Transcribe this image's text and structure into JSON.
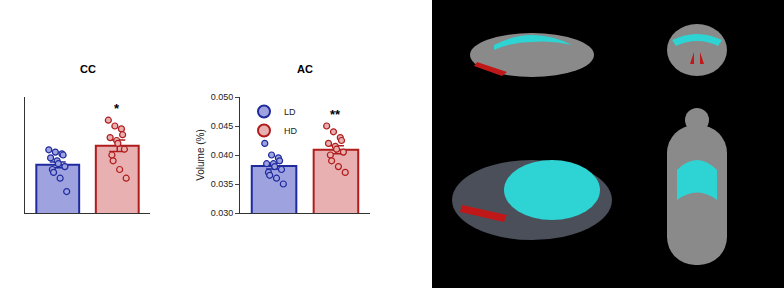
{
  "chart_data": [
    {
      "type": "bar",
      "title": "CC",
      "ylim": [
        0.03,
        0.05
      ],
      "tick_labels": false,
      "series": [
        {
          "name": "LD",
          "color": "#1f2a9e",
          "fill": "#9ea3e0",
          "values": [
            0.0383
          ],
          "error": [
            0.0005
          ],
          "points": [
            0.0409,
            0.0405,
            0.0402,
            0.04,
            0.0395,
            0.039,
            0.0385,
            0.038,
            0.0375,
            0.037,
            0.036,
            0.0337
          ]
        },
        {
          "name": "HD",
          "color": "#b01c1c",
          "fill": "#e8b0b0",
          "values": [
            0.0416
          ],
          "error": [
            0.001
          ],
          "points": [
            0.046,
            0.045,
            0.0445,
            0.0435,
            0.043,
            0.0425,
            0.042,
            0.041,
            0.04,
            0.039,
            0.0375,
            0.036
          ]
        }
      ],
      "annotations": [
        {
          "series": "HD",
          "text": "*"
        }
      ]
    },
    {
      "type": "bar",
      "title": "AC",
      "y_label": "Volume (%)",
      "ylim": [
        0.03,
        0.05
      ],
      "yticks": [
        {
          "value": 0.03,
          "label": "0.030"
        },
        0.035,
        {
          "value": 0.04,
          "label": "0.040"
        },
        0.045,
        {
          "value": 0.05,
          "label": "0.050"
        }
      ],
      "legend": "upper left",
      "series": [
        {
          "name": "LD",
          "color": "#1f2a9e",
          "fill": "#9ea3e0",
          "values": [
            0.0381
          ],
          "error": [
            0.0005
          ],
          "points": [
            0.042,
            0.04,
            0.0395,
            0.039,
            0.0385,
            0.0385,
            0.038,
            0.0375,
            0.037,
            0.0365,
            0.036,
            0.035
          ]
        },
        {
          "name": "HD",
          "color": "#b01c1c",
          "fill": "#e8b0b0",
          "values": [
            0.0409
          ],
          "error": [
            0.0007
          ],
          "points": [
            0.045,
            0.044,
            0.043,
            0.0425,
            0.042,
            0.0415,
            0.041,
            0.0405,
            0.04,
            0.039,
            0.038,
            0.037
          ]
        }
      ],
      "annotations": [
        {
          "series": "HD",
          "text": "**"
        }
      ]
    }
  ]
}
